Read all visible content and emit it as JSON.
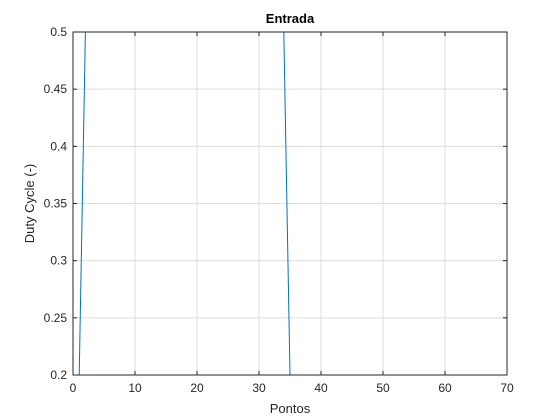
{
  "chart_data": {
    "type": "line",
    "title": "Entrada",
    "xlabel": "Pontos",
    "ylabel": "Duty Cycle (-)",
    "xlim": [
      0,
      70
    ],
    "ylim": [
      0.2,
      0.5
    ],
    "xticks": [
      0,
      10,
      20,
      30,
      40,
      50,
      60,
      70
    ],
    "xtick_labels": [
      "0",
      "10",
      "20",
      "30",
      "40",
      "50",
      "60",
      "70"
    ],
    "yticks": [
      0.2,
      0.25,
      0.3,
      0.35,
      0.4,
      0.45,
      0.5
    ],
    "ytick_labels": [
      "0.2",
      "0.25",
      "0.3",
      "0.35",
      "0.4",
      "0.45",
      "0.5"
    ],
    "grid": true,
    "series": [
      {
        "color": "#0072BD",
        "x": [
          1,
          2,
          34,
          35,
          68
        ],
        "y": [
          0.2,
          0.5,
          0.5,
          0.2,
          0.2
        ]
      }
    ]
  }
}
